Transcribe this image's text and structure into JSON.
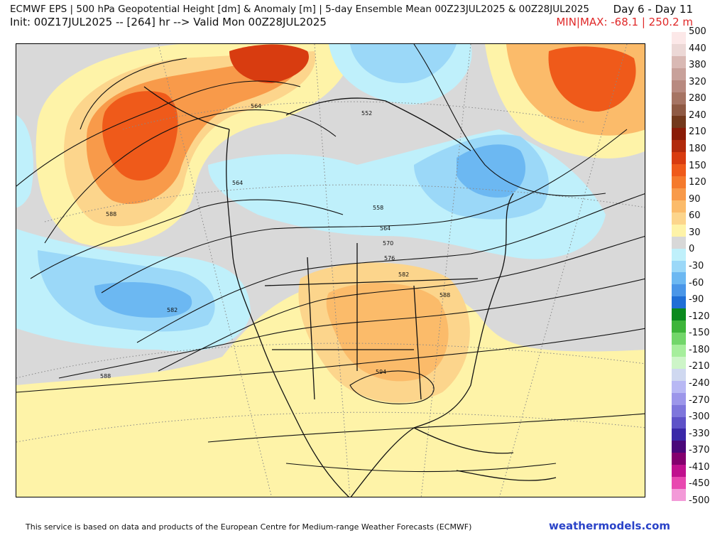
{
  "header": {
    "title": "ECMWF EPS | 500 hPa Geopotential Height [dm] & Anomaly [m] | 5-day Ensemble Mean 00Z23JUL2025 & 00Z28JUL2025",
    "init_line": "Init: 00Z17JUL2025 -- [264] hr --> Valid Mon 00Z28JUL2025",
    "day_range": "Day 6 - Day 11",
    "minmax": "MIN|MAX: -68.1 | 250.2 m"
  },
  "legend": {
    "labels": [
      "500",
      "440",
      "380",
      "320",
      "280",
      "240",
      "210",
      "180",
      "150",
      "120",
      "90",
      "60",
      "30",
      "0",
      "-30",
      "-60",
      "-90",
      "-120",
      "-150",
      "-180",
      "-210",
      "-240",
      "-270",
      "-300",
      "-330",
      "-370",
      "-410",
      "-450",
      "-500"
    ],
    "colors": [
      "#fce8e8",
      "#ecd8d6",
      "#d9b9b4",
      "#c8a19a",
      "#b88a80",
      "#a67463",
      "#8f5a44",
      "#73391c",
      "#8a1c08",
      "#b12a0c",
      "#d83c10",
      "#ef5a1a",
      "#f57a2c",
      "#f89a4a",
      "#fbbb6a",
      "#fcd58c",
      "#fef3a8",
      "#d8d8d8",
      "#bff0fb",
      "#9bd8f8",
      "#6cb8f2",
      "#4a96e8",
      "#1f6ed6",
      "#0a8a1e",
      "#3db53a",
      "#72d66a",
      "#a6ee9c",
      "#cdf5c8",
      "#cfd8f0"
    ],
    "colors_low": [
      "#cfd8f0",
      "#b8b8f4",
      "#9c96ea",
      "#7e76dc",
      "#5e52c8",
      "#3a28a8",
      "#4a087a",
      "#84006e",
      "#c0108e",
      "#e848b0",
      "#f39ad8"
    ]
  },
  "map": {
    "contour_labels": [
      "564",
      "552",
      "564",
      "558",
      "564",
      "570",
      "576",
      "582",
      "588",
      "588",
      "582",
      "588",
      "594"
    ]
  },
  "footer": {
    "attribution": "This service is based on data and products of the European Centre for Medium-range Weather Forecasts (ECMWF)",
    "brand": "weathermodels.com"
  }
}
